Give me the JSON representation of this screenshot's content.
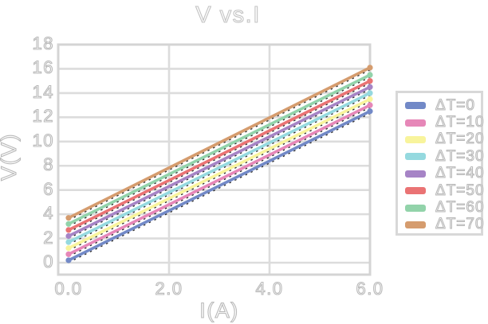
{
  "chart_data": {
    "type": "line",
    "title": "V vs.I",
    "xlabel": "I(A)",
    "ylabel": "V(V)",
    "x_ticks": [
      0,
      2,
      4,
      6
    ],
    "x_tick_labels": [
      "0.0",
      "2.0",
      "4.0",
      "6.0"
    ],
    "y_ticks": [
      0,
      2,
      4,
      6,
      8,
      10,
      12,
      14,
      16,
      18
    ],
    "x_gridlines": [
      2,
      4
    ],
    "xlim": [
      -0.2,
      6.0
    ],
    "ylim": [
      -1,
      18
    ],
    "grid": true,
    "legend_position": "right",
    "series": [
      {
        "name": "ΔT=0",
        "color": "#7289c7",
        "x": [
          0,
          6
        ],
        "y": [
          0.2,
          12.5
        ]
      },
      {
        "name": "ΔT=10",
        "color": "#e687b8",
        "x": [
          0,
          6
        ],
        "y": [
          0.7,
          13.0
        ]
      },
      {
        "name": "ΔT=20",
        "color": "#f8f49c",
        "x": [
          0,
          6
        ],
        "y": [
          1.2,
          13.5
        ]
      },
      {
        "name": "ΔT=30",
        "color": "#95d9df",
        "x": [
          0,
          6
        ],
        "y": [
          1.7,
          14.0
        ]
      },
      {
        "name": "ΔT=40",
        "color": "#a684c6",
        "x": [
          0,
          6
        ],
        "y": [
          2.2,
          14.5
        ]
      },
      {
        "name": "ΔT=50",
        "color": "#ea7374",
        "x": [
          0,
          6
        ],
        "y": [
          2.7,
          15.0
        ]
      },
      {
        "name": "ΔT=60",
        "color": "#92d3aa",
        "x": [
          0,
          6
        ],
        "y": [
          3.2,
          15.5
        ]
      },
      {
        "name": "ΔT=70",
        "color": "#d59c6e",
        "x": [
          0,
          6
        ],
        "y": [
          3.7,
          16.1
        ]
      }
    ],
    "style": {
      "grid_color": "#dcdcdc",
      "spine_color": "#d4d4d4",
      "text_outline_color": "#b9b9b9",
      "fit_underlay": "black-dashed"
    }
  }
}
